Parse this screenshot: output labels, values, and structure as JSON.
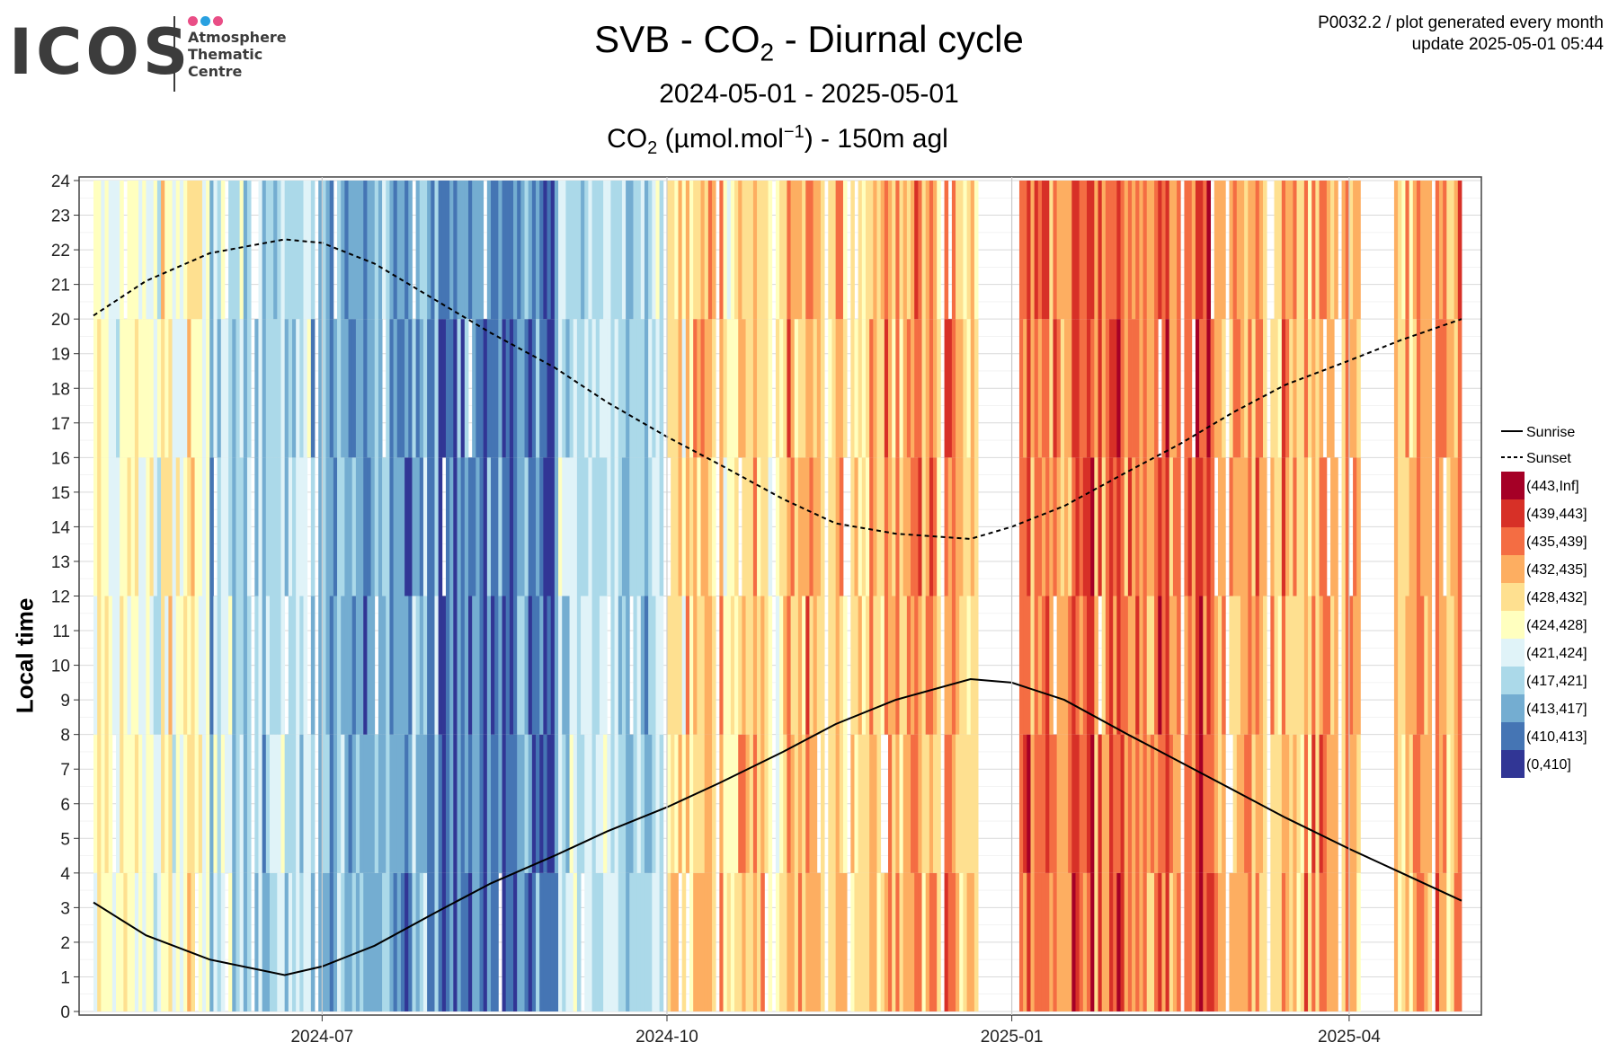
{
  "logo": {
    "word": "ICOS",
    "lines": [
      "Atmosphere",
      "Thematic",
      "Centre"
    ],
    "dot_colors": [
      "#e94e86",
      "#29a0e0",
      "#e94e86"
    ]
  },
  "header": {
    "title_pre": "SVB - CO",
    "title_sub": "2",
    "title_post": " - Diurnal cycle",
    "subtitle": "2024-05-01 - 2025-05-01",
    "unit_pre": "CO",
    "unit_sub": "2",
    "unit_mid": " (µmol.mol",
    "unit_sup": "−1",
    "unit_post": ") - 150m agl"
  },
  "meta": {
    "line1": "P0032.2 / plot generated every month",
    "line2": "update  2025-05-01 05:44"
  },
  "chart_data": {
    "type": "heatmap",
    "x_start": "2024-05-01",
    "x_end": "2025-05-01",
    "x_ticks": [
      "2024-07",
      "2024-10",
      "2025-01",
      "2025-04"
    ],
    "y_label": "Local time",
    "y_range": [
      0,
      24
    ],
    "y_ticks": [
      0,
      1,
      2,
      3,
      4,
      5,
      6,
      7,
      8,
      9,
      10,
      11,
      12,
      13,
      14,
      15,
      16,
      17,
      18,
      19,
      20,
      21,
      22,
      23,
      24
    ],
    "legend": {
      "lines": [
        {
          "name": "Sunrise",
          "style": "solid"
        },
        {
          "name": "Sunset",
          "style": "dashed"
        }
      ],
      "bins": [
        {
          "label": "(443,Inf]",
          "color": "#a50026"
        },
        {
          "label": "(439,443]",
          "color": "#d73027"
        },
        {
          "label": "(435,439]",
          "color": "#f46d43"
        },
        {
          "label": "(432,435]",
          "color": "#fdae61"
        },
        {
          "label": "(428,432]",
          "color": "#fee090"
        },
        {
          "label": "(424,428]",
          "color": "#ffffbf"
        },
        {
          "label": "(421,424]",
          "color": "#e0f3f8"
        },
        {
          "label": "(417,421]",
          "color": "#abd9e9"
        },
        {
          "label": "(413,417]",
          "color": "#74add1"
        },
        {
          "label": "(410,413]",
          "color": "#4575b4"
        },
        {
          "label": "(0,410]",
          "color": "#313695"
        }
      ]
    },
    "monthly_typical_bin": [
      {
        "month": "2024-05",
        "bin": "(424,428]"
      },
      {
        "month": "2024-06",
        "bin": "(417,421]"
      },
      {
        "month": "2024-07",
        "bin": "(413,417]"
      },
      {
        "month": "2024-08",
        "bin": "(410,413]"
      },
      {
        "month": "2024-09",
        "bin": "(417,421]"
      },
      {
        "month": "2024-10",
        "bin": "(428,432]"
      },
      {
        "month": "2024-11",
        "bin": "(432,435]"
      },
      {
        "month": "2024-12",
        "bin": "(432,435]"
      },
      {
        "month": "2025-01",
        "bin": "(435,439]"
      },
      {
        "month": "2025-02",
        "bin": "(435,439]"
      },
      {
        "month": "2025-03",
        "bin": "(432,435]"
      },
      {
        "month": "2025-04",
        "bin": "(432,435]"
      }
    ],
    "data_gaps": [
      {
        "start": "2024-12-23",
        "end": "2025-01-03"
      },
      {
        "start": "2025-04-04",
        "end": "2025-04-13"
      }
    ],
    "sunrise": {
      "x": [
        "2024-05-01",
        "2024-05-15",
        "2024-06-01",
        "2024-06-21",
        "2024-07-01",
        "2024-07-15",
        "2024-08-01",
        "2024-08-15",
        "2024-09-01",
        "2024-09-15",
        "2024-10-01",
        "2024-10-15",
        "2024-11-01",
        "2024-11-15",
        "2024-12-01",
        "2024-12-21",
        "2025-01-01",
        "2025-01-15",
        "2025-02-01",
        "2025-02-15",
        "2025-03-01",
        "2025-03-15",
        "2025-04-01",
        "2025-04-15",
        "2025-05-01"
      ],
      "y": [
        3.15,
        2.2,
        1.5,
        1.05,
        1.3,
        1.9,
        2.9,
        3.7,
        4.5,
        5.2,
        5.9,
        6.6,
        7.5,
        8.3,
        9.0,
        9.6,
        9.5,
        9.0,
        8.0,
        7.2,
        6.4,
        5.6,
        4.7,
        4.0,
        3.2
      ]
    },
    "sunset": {
      "x": [
        "2024-05-01",
        "2024-05-15",
        "2024-06-01",
        "2024-06-21",
        "2024-07-01",
        "2024-07-15",
        "2024-08-01",
        "2024-08-15",
        "2024-09-01",
        "2024-09-15",
        "2024-10-01",
        "2024-10-15",
        "2024-11-01",
        "2024-11-15",
        "2024-12-01",
        "2024-12-21",
        "2025-01-01",
        "2025-01-15",
        "2025-02-01",
        "2025-02-15",
        "2025-03-01",
        "2025-03-15",
        "2025-04-01",
        "2025-04-15",
        "2025-05-01"
      ],
      "y": [
        20.1,
        21.1,
        21.9,
        22.3,
        22.2,
        21.6,
        20.5,
        19.6,
        18.6,
        17.6,
        16.6,
        15.8,
        14.8,
        14.1,
        13.8,
        13.65,
        14.0,
        14.6,
        15.6,
        16.4,
        17.3,
        18.1,
        18.8,
        19.4,
        20.0
      ]
    }
  }
}
